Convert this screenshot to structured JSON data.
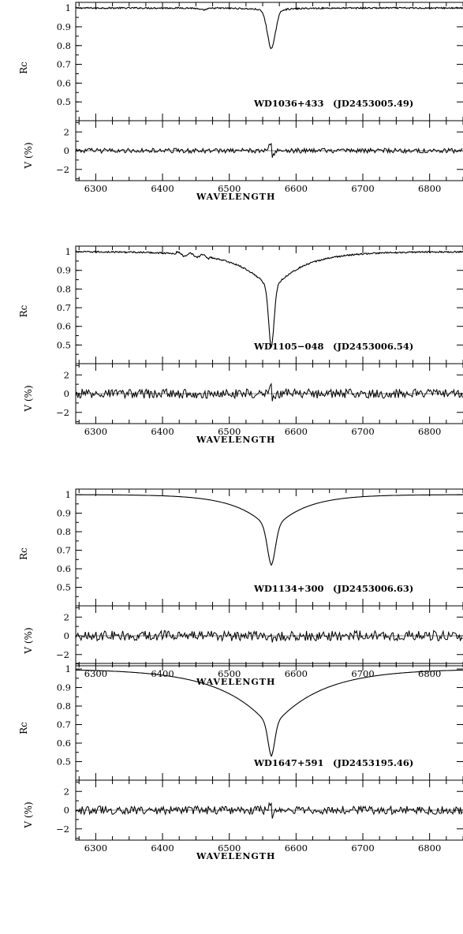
{
  "chart_data": [
    {
      "type": "line",
      "id": "wd1036",
      "object": "WD1036+433",
      "epoch": "(JD2453005.49)",
      "xlabel": "WAVELENGTH",
      "xlim": [
        6270,
        6850
      ],
      "xticks": [
        "6300",
        "6400",
        "6500",
        "6600",
        "6700",
        "6800"
      ],
      "top_panel": {
        "ylabel": "Rc",
        "ylim": [
          0.4,
          1.03
        ],
        "yticks": [
          "1",
          "0.9",
          "0.8",
          "0.7",
          "0.6",
          "0.5"
        ],
        "line_center": 6563,
        "line_depth": 0.2,
        "line_width": 6,
        "wing_depth": 0.015,
        "wing_width": 50,
        "series": [
          {
            "x": [
              6270,
              6400,
              6460,
              6520,
              6550,
              6560,
              6563,
              6566,
              6580,
              6610,
              6700,
              6850
            ],
            "y": [
              1.0,
              1.0,
              0.99,
              0.985,
              0.93,
              0.82,
              0.8,
              0.82,
              0.97,
              0.997,
              1.0,
              1.0
            ]
          }
        ]
      },
      "bottom_panel": {
        "ylabel": "V (%)",
        "ylim": [
          -3.2,
          3.2
        ],
        "yticks": [
          "2",
          "0",
          "−2"
        ],
        "noise_amplitude": 0.25,
        "feature_at": 6563,
        "feature_amplitude": 0.7
      }
    },
    {
      "type": "line",
      "id": "wd1105",
      "object": "WD1105−048",
      "epoch": "(JD2453006.54)",
      "xlabel": "WAVELENGTH",
      "xlim": [
        6270,
        6850
      ],
      "xticks": [
        "6300",
        "6400",
        "6500",
        "6600",
        "6700",
        "6800"
      ],
      "top_panel": {
        "ylabel": "Rc",
        "ylim": [
          0.4,
          1.03
        ],
        "yticks": [
          "1",
          "0.9",
          "0.8",
          "0.7",
          "0.6",
          "0.5"
        ],
        "line_center": 6563,
        "line_depth": 0.3,
        "line_width": 4,
        "wing_depth": 0.16,
        "wing_width": 90,
        "series": [
          {
            "x": [
              6270,
              6420,
              6480,
              6520,
              6545,
              6558,
              6563,
              6568,
              6585,
              6620,
              6680,
              6850
            ],
            "y": [
              1.0,
              0.99,
              0.95,
              0.85,
              0.72,
              0.62,
              0.55,
              0.63,
              0.75,
              0.87,
              0.99,
              1.0
            ]
          }
        ]
      },
      "bottom_panel": {
        "ylabel": "V (%)",
        "ylim": [
          -3.2,
          3.2
        ],
        "yticks": [
          "2",
          "0",
          "−2"
        ],
        "noise_amplitude": 0.5,
        "feature_at": 6563,
        "feature_amplitude": 0.6
      }
    },
    {
      "type": "line",
      "id": "wd1134",
      "object": "WD1134+300",
      "epoch": "(JD2453006.63)",
      "xlabel": "WAVELENGTH",
      "xlim": [
        6270,
        6850
      ],
      "xticks": [
        "6300",
        "6400",
        "6500",
        "6600",
        "6700",
        "6800"
      ],
      "top_panel": {
        "ylabel": "Rc",
        "ylim": [
          0.4,
          1.03
        ],
        "yticks": [
          "1",
          "0.9",
          "0.8",
          "0.7",
          "0.6",
          "0.5"
        ],
        "line_center": 6563,
        "line_depth": 0.18,
        "line_width": 6,
        "wing_depth": 0.2,
        "wing_width": 85,
        "series": [
          {
            "x": [
              6270,
              6430,
              6490,
              6530,
              6555,
              6563,
              6571,
              6600,
              6650,
              6720,
              6850
            ],
            "y": [
              1.0,
              0.99,
              0.93,
              0.83,
              0.7,
              0.62,
              0.7,
              0.85,
              0.96,
              1.0,
              1.0
            ]
          }
        ]
      },
      "bottom_panel": {
        "ylabel": "V (%)",
        "ylim": [
          -3.2,
          3.2
        ],
        "yticks": [
          "2",
          "0",
          "−2"
        ],
        "noise_amplitude": 0.55,
        "feature_at": 6563,
        "feature_amplitude": 0.4
      }
    },
    {
      "type": "line",
      "id": "wd1647",
      "object": "WD1647+591",
      "epoch": "(JD2453195.46)",
      "xlabel": "WAVELENGTH",
      "xlim": [
        6270,
        6850
      ],
      "xticks": [
        "6300",
        "6400",
        "6500",
        "6600",
        "6700",
        "6800"
      ],
      "top_panel": {
        "ylabel": "Rc",
        "ylim": [
          0.4,
          1.03
        ],
        "yticks": [
          "1",
          "0.9",
          "0.8",
          "0.7",
          "0.6",
          "0.5"
        ],
        "line_center": 6563,
        "line_depth": 0.15,
        "line_width": 5,
        "wing_depth": 0.32,
        "wing_width": 130,
        "series": [
          {
            "x": [
              6270,
              6350,
              6420,
              6480,
              6530,
              6555,
              6563,
              6571,
              6600,
              6650,
              6720,
              6800,
              6850
            ],
            "y": [
              1.0,
              0.99,
              0.95,
              0.87,
              0.73,
              0.6,
              0.53,
              0.61,
              0.78,
              0.9,
              0.97,
              1.0,
              1.0
            ]
          }
        ]
      },
      "bottom_panel": {
        "ylabel": "V (%)",
        "ylim": [
          -3.2,
          3.2
        ],
        "yticks": [
          "2",
          "0",
          "−2"
        ],
        "noise_amplitude": 0.45,
        "feature_at": 6563,
        "feature_amplitude": 0.6
      }
    }
  ]
}
